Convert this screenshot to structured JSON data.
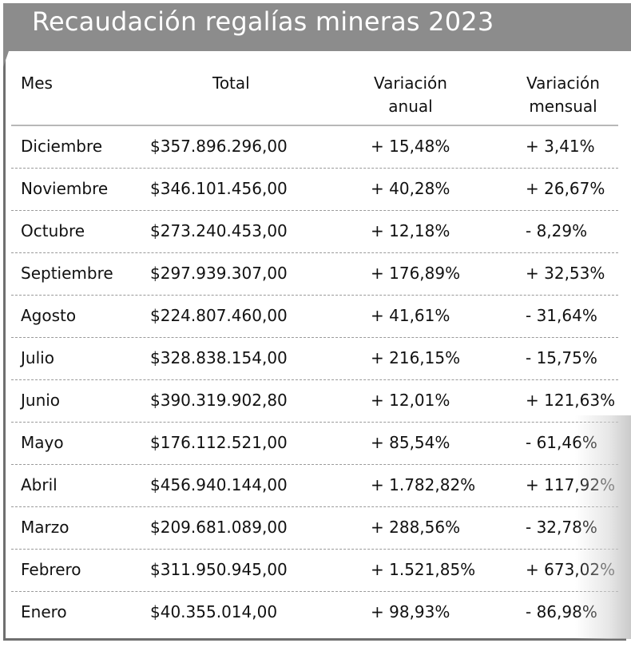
{
  "title": "Recaudación regalías mineras 2023",
  "chart_data": {
    "type": "table",
    "columns": [
      "Mes",
      "Total",
      "Variación anual",
      "Variación mensual"
    ],
    "rows": [
      {
        "mes": "Diciembre",
        "total": "$357.896.296,00",
        "anual": "+ 15,48%",
        "mensual": "+ 3,41%"
      },
      {
        "mes": "Noviembre",
        "total": "$346.101.456,00",
        "anual": "+ 40,28%",
        "mensual": "+ 26,67%"
      },
      {
        "mes": "Octubre",
        "total": "$273.240.453,00",
        "anual": "+ 12,18%",
        "mensual": "- 8,29%"
      },
      {
        "mes": "Septiembre",
        "total": "$297.939.307,00",
        "anual": "+ 176,89%",
        "mensual": "+ 32,53%"
      },
      {
        "mes": "Agosto",
        "total": "$224.807.460,00",
        "anual": "+ 41,61%",
        "mensual": "- 31,64%"
      },
      {
        "mes": "Julio",
        "total": "$328.838.154,00",
        "anual": "+ 216,15%",
        "mensual": "- 15,75%"
      },
      {
        "mes": "Junio",
        "total": "$390.319.902,80",
        "anual": "+ 12,01%",
        "mensual": "+ 121,63%"
      },
      {
        "mes": "Mayo",
        "total": "$176.112.521,00",
        "anual": "+ 85,54%",
        "mensual": "- 61,46%"
      },
      {
        "mes": "Abril",
        "total": "$456.940.144,00",
        "anual": "+ 1.782,82%",
        "mensual": "+ 117,92%"
      },
      {
        "mes": "Marzo",
        "total": "$209.681.089,00",
        "anual": "+ 288,56%",
        "mensual": "- 32,78%"
      },
      {
        "mes": "Febrero",
        "total": "$311.950.945,00",
        "anual": "+ 1.521,85%",
        "mensual": "+ 673,02%"
      },
      {
        "mes": "Enero",
        "total": "$40.355.014,00",
        "anual": "+ 98,93%",
        "mensual": "- 86,98%"
      }
    ]
  },
  "headers": {
    "mes": "Mes",
    "total": "Total",
    "anual_line1": "Variación",
    "anual_line2": "anual",
    "mensual_line1": "Variación",
    "mensual_line2": "mensual"
  }
}
